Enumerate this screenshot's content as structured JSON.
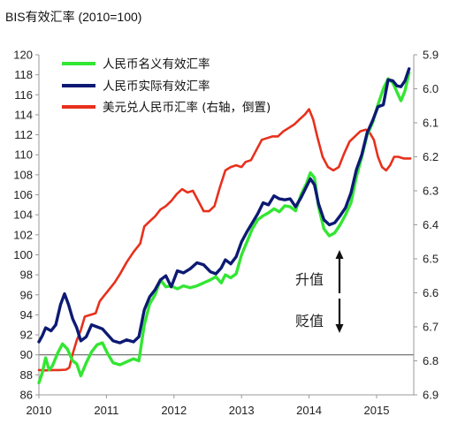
{
  "chart_data": {
    "type": "line",
    "title": "BIS有效汇率 (2010=100)",
    "x_tick_labels": [
      "2010",
      "2011",
      "2012",
      "2013",
      "2014",
      "2015"
    ],
    "x_range": [
      2010,
      2015.55
    ],
    "y_left": {
      "range": [
        86,
        120
      ],
      "ticks": [
        86,
        88,
        90,
        92,
        94,
        96,
        98,
        100,
        102,
        104,
        106,
        108,
        110,
        112,
        114,
        116,
        118,
        120
      ]
    },
    "y_right": {
      "range": [
        6.9,
        5.9
      ],
      "inverted": true,
      "ticks": [
        "5.9",
        "6.0",
        "6.1",
        "6.2",
        "6.3",
        "6.4",
        "6.5",
        "6.6",
        "6.7",
        "6.8",
        "6.9"
      ]
    },
    "reference_line": {
      "y": 90,
      "axis": "left"
    },
    "annotations": [
      {
        "text": "升值",
        "direction": "up"
      },
      {
        "text": "贬值",
        "direction": "down"
      }
    ],
    "legend_position": "top-left",
    "series": [
      {
        "name": "人民币名义有效汇率",
        "axis": "left",
        "color": "#33e633",
        "points": [
          [
            2010.0,
            87.2
          ],
          [
            2010.05,
            88.2
          ],
          [
            2010.1,
            89.7
          ],
          [
            2010.15,
            88.5
          ],
          [
            2010.2,
            88.9
          ],
          [
            2010.28,
            90.2
          ],
          [
            2010.35,
            91.1
          ],
          [
            2010.42,
            90.6
          ],
          [
            2010.5,
            89.4
          ],
          [
            2010.56,
            89.1
          ],
          [
            2010.62,
            87.9
          ],
          [
            2010.7,
            89.2
          ],
          [
            2010.78,
            90.3
          ],
          [
            2010.86,
            91.0
          ],
          [
            2010.94,
            91.2
          ],
          [
            2011.02,
            90.1
          ],
          [
            2011.1,
            89.2
          ],
          [
            2011.2,
            89.0
          ],
          [
            2011.3,
            89.3
          ],
          [
            2011.4,
            89.6
          ],
          [
            2011.48,
            89.4
          ],
          [
            2011.56,
            93.0
          ],
          [
            2011.64,
            95.1
          ],
          [
            2011.72,
            96.0
          ],
          [
            2011.8,
            97.5
          ],
          [
            2011.88,
            96.8
          ],
          [
            2011.96,
            96.9
          ],
          [
            2012.05,
            96.6
          ],
          [
            2012.14,
            96.9
          ],
          [
            2012.24,
            96.7
          ],
          [
            2012.34,
            96.9
          ],
          [
            2012.44,
            97.2
          ],
          [
            2012.54,
            97.5
          ],
          [
            2012.62,
            97.8
          ],
          [
            2012.7,
            97.2
          ],
          [
            2012.76,
            98.0
          ],
          [
            2012.84,
            97.7
          ],
          [
            2012.92,
            98.1
          ],
          [
            2013.0,
            100.0
          ],
          [
            2013.08,
            101.3
          ],
          [
            2013.16,
            102.6
          ],
          [
            2013.24,
            103.5
          ],
          [
            2013.32,
            103.9
          ],
          [
            2013.4,
            104.2
          ],
          [
            2013.48,
            104.6
          ],
          [
            2013.56,
            104.3
          ],
          [
            2013.64,
            104.9
          ],
          [
            2013.72,
            104.8
          ],
          [
            2013.8,
            104.4
          ],
          [
            2013.88,
            106.0
          ],
          [
            2013.96,
            107.1
          ],
          [
            2014.02,
            108.2
          ],
          [
            2014.08,
            107.7
          ],
          [
            2014.14,
            104.8
          ],
          [
            2014.22,
            102.6
          ],
          [
            2014.3,
            101.9
          ],
          [
            2014.38,
            102.2
          ],
          [
            2014.46,
            103.0
          ],
          [
            2014.54,
            104.0
          ],
          [
            2014.62,
            105.2
          ],
          [
            2014.7,
            107.8
          ],
          [
            2014.78,
            109.8
          ],
          [
            2014.86,
            112.0
          ],
          [
            2014.94,
            113.2
          ],
          [
            2015.02,
            115.0
          ],
          [
            2015.1,
            116.6
          ],
          [
            2015.17,
            117.6
          ],
          [
            2015.24,
            117.2
          ],
          [
            2015.3,
            116.3
          ],
          [
            2015.36,
            115.4
          ],
          [
            2015.42,
            116.4
          ],
          [
            2015.48,
            118.2
          ]
        ]
      },
      {
        "name": "人民币实际有效汇率",
        "axis": "left",
        "color": "#0d1a73",
        "points": [
          [
            2010.0,
            91.3
          ],
          [
            2010.05,
            91.9
          ],
          [
            2010.1,
            92.7
          ],
          [
            2010.18,
            92.4
          ],
          [
            2010.25,
            93.0
          ],
          [
            2010.32,
            95.0
          ],
          [
            2010.38,
            96.1
          ],
          [
            2010.44,
            95.0
          ],
          [
            2010.5,
            93.6
          ],
          [
            2010.56,
            92.7
          ],
          [
            2010.62,
            91.4
          ],
          [
            2010.7,
            91.8
          ],
          [
            2010.78,
            93.0
          ],
          [
            2010.86,
            92.8
          ],
          [
            2010.94,
            92.6
          ],
          [
            2011.02,
            92.0
          ],
          [
            2011.1,
            91.4
          ],
          [
            2011.2,
            91.2
          ],
          [
            2011.3,
            91.5
          ],
          [
            2011.4,
            91.3
          ],
          [
            2011.48,
            91.8
          ],
          [
            2011.56,
            94.5
          ],
          [
            2011.64,
            95.8
          ],
          [
            2011.72,
            96.5
          ],
          [
            2011.8,
            97.5
          ],
          [
            2011.88,
            97.9
          ],
          [
            2011.96,
            96.8
          ],
          [
            2012.05,
            98.4
          ],
          [
            2012.14,
            98.2
          ],
          [
            2012.24,
            98.6
          ],
          [
            2012.34,
            99.2
          ],
          [
            2012.44,
            99.0
          ],
          [
            2012.54,
            98.3
          ],
          [
            2012.62,
            98.1
          ],
          [
            2012.7,
            98.7
          ],
          [
            2012.76,
            99.5
          ],
          [
            2012.84,
            99.1
          ],
          [
            2012.92,
            99.8
          ],
          [
            2013.0,
            101.3
          ],
          [
            2013.08,
            102.3
          ],
          [
            2013.16,
            103.2
          ],
          [
            2013.24,
            104.1
          ],
          [
            2013.32,
            105.2
          ],
          [
            2013.4,
            105.0
          ],
          [
            2013.48,
            105.9
          ],
          [
            2013.56,
            105.6
          ],
          [
            2013.64,
            105.5
          ],
          [
            2013.72,
            105.6
          ],
          [
            2013.8,
            104.8
          ],
          [
            2013.88,
            105.7
          ],
          [
            2013.96,
            106.8
          ],
          [
            2014.02,
            107.6
          ],
          [
            2014.08,
            107.0
          ],
          [
            2014.14,
            105.1
          ],
          [
            2014.22,
            103.5
          ],
          [
            2014.3,
            103.0
          ],
          [
            2014.38,
            103.2
          ],
          [
            2014.46,
            103.9
          ],
          [
            2014.54,
            104.7
          ],
          [
            2014.62,
            106.2
          ],
          [
            2014.7,
            108.5
          ],
          [
            2014.78,
            110.0
          ],
          [
            2014.86,
            112.2
          ],
          [
            2014.94,
            113.4
          ],
          [
            2015.02,
            114.8
          ],
          [
            2015.1,
            115.0
          ],
          [
            2015.17,
            117.5
          ],
          [
            2015.24,
            117.4
          ],
          [
            2015.3,
            116.9
          ],
          [
            2015.36,
            116.8
          ],
          [
            2015.42,
            117.4
          ],
          [
            2015.48,
            118.6
          ]
        ]
      },
      {
        "name": "美元兑人民币汇率 (右轴，倒置)",
        "axis": "right",
        "color": "#e8301c",
        "points": [
          [
            2010.0,
            6.827
          ],
          [
            2010.1,
            6.828
          ],
          [
            2010.2,
            6.827
          ],
          [
            2010.3,
            6.827
          ],
          [
            2010.4,
            6.826
          ],
          [
            2010.45,
            6.82
          ],
          [
            2010.5,
            6.78
          ],
          [
            2010.56,
            6.74
          ],
          [
            2010.62,
            6.71
          ],
          [
            2010.68,
            6.67
          ],
          [
            2010.76,
            6.665
          ],
          [
            2010.84,
            6.66
          ],
          [
            2010.9,
            6.625
          ],
          [
            2010.96,
            6.61
          ],
          [
            2011.04,
            6.59
          ],
          [
            2011.12,
            6.57
          ],
          [
            2011.2,
            6.545
          ],
          [
            2011.3,
            6.51
          ],
          [
            2011.4,
            6.48
          ],
          [
            2011.5,
            6.455
          ],
          [
            2011.56,
            6.405
          ],
          [
            2011.64,
            6.39
          ],
          [
            2011.72,
            6.375
          ],
          [
            2011.8,
            6.355
          ],
          [
            2011.88,
            6.345
          ],
          [
            2011.96,
            6.33
          ],
          [
            2012.04,
            6.31
          ],
          [
            2012.12,
            6.295
          ],
          [
            2012.2,
            6.305
          ],
          [
            2012.28,
            6.3
          ],
          [
            2012.36,
            6.33
          ],
          [
            2012.44,
            6.36
          ],
          [
            2012.52,
            6.36
          ],
          [
            2012.6,
            6.345
          ],
          [
            2012.68,
            6.29
          ],
          [
            2012.76,
            6.24
          ],
          [
            2012.84,
            6.23
          ],
          [
            2012.92,
            6.225
          ],
          [
            2013.0,
            6.23
          ],
          [
            2013.06,
            6.215
          ],
          [
            2013.14,
            6.21
          ],
          [
            2013.22,
            6.18
          ],
          [
            2013.3,
            6.15
          ],
          [
            2013.38,
            6.145
          ],
          [
            2013.46,
            6.14
          ],
          [
            2013.54,
            6.14
          ],
          [
            2013.62,
            6.125
          ],
          [
            2013.7,
            6.115
          ],
          [
            2013.78,
            6.105
          ],
          [
            2013.86,
            6.09
          ],
          [
            2013.94,
            6.075
          ],
          [
            2014.0,
            6.06
          ],
          [
            2014.06,
            6.09
          ],
          [
            2014.12,
            6.14
          ],
          [
            2014.2,
            6.2
          ],
          [
            2014.28,
            6.23
          ],
          [
            2014.36,
            6.24
          ],
          [
            2014.44,
            6.23
          ],
          [
            2014.52,
            6.19
          ],
          [
            2014.6,
            6.155
          ],
          [
            2014.68,
            6.14
          ],
          [
            2014.76,
            6.125
          ],
          [
            2014.84,
            6.12
          ],
          [
            2014.9,
            6.13
          ],
          [
            2014.96,
            6.15
          ],
          [
            2015.02,
            6.2
          ],
          [
            2015.08,
            6.23
          ],
          [
            2015.14,
            6.24
          ],
          [
            2015.2,
            6.225
          ],
          [
            2015.26,
            6.2
          ],
          [
            2015.32,
            6.2
          ],
          [
            2015.4,
            6.205
          ],
          [
            2015.5,
            6.205
          ]
        ]
      }
    ]
  }
}
